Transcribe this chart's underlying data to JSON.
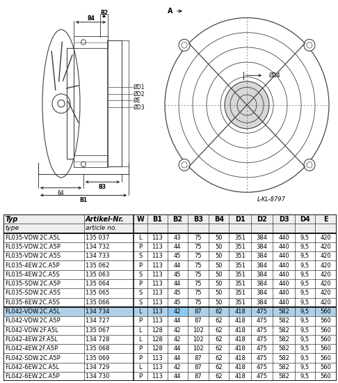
{
  "table_headers_line1": [
    "Typ",
    "Artikel-Nr.",
    "W",
    "B1",
    "B2",
    "B3",
    "B4",
    "D1",
    "D2",
    "D3",
    "D4",
    "E"
  ],
  "table_headers_line2": [
    "type",
    "article no.",
    "",
    "",
    "",
    "",
    "",
    "",
    "",
    "",
    "",
    ""
  ],
  "rows": [
    [
      "FL035-VDW.2C.A5L",
      "135 037",
      "L",
      "113",
      "43",
      "75",
      "50",
      "351",
      "384",
      "440",
      "9,5",
      "420"
    ],
    [
      "FL035-VDW.2C.A5P",
      "134 732",
      "P",
      "113",
      "44",
      "75",
      "50",
      "351",
      "384",
      "440",
      "9,5",
      "420"
    ],
    [
      "FL035-VDW.2C.A5S",
      "134 733",
      "S",
      "113",
      "45",
      "75",
      "50",
      "351",
      "384",
      "440",
      "9,5",
      "420"
    ],
    [
      "FL035-4EW.2C.A5P",
      "135 062",
      "P",
      "113",
      "44",
      "75",
      "50",
      "351",
      "384",
      "440",
      "9,5",
      "420"
    ],
    [
      "FL035-4EW.2C.A5S",
      "135 063",
      "S",
      "113",
      "45",
      "75",
      "50",
      "351",
      "384",
      "440",
      "9,5",
      "420"
    ],
    [
      "FL035-SDW.2C.A5P",
      "135 064",
      "P",
      "113",
      "44",
      "75",
      "50",
      "351",
      "384",
      "440",
      "9,5",
      "420"
    ],
    [
      "FL035-SDW.2C.A5S",
      "135 065",
      "S",
      "113",
      "45",
      "75",
      "50",
      "351",
      "384",
      "440",
      "9,5",
      "420"
    ],
    [
      "FL035-6EW.2C.A5S",
      "135 066",
      "S",
      "113",
      "45",
      "75",
      "50",
      "351",
      "384",
      "440",
      "9,5",
      "420"
    ],
    [
      "FL042-VDW.2C.A5L",
      "134 734",
      "L",
      "113",
      "42",
      "87",
      "62",
      "418",
      "475",
      "582",
      "9,5",
      "560"
    ],
    [
      "FL042-VDW.2C.A5P",
      "134 727",
      "P",
      "113",
      "44",
      "87",
      "62",
      "418",
      "475",
      "582",
      "9,5",
      "560"
    ],
    [
      "FL042-VDW.2F.A5L",
      "135 067",
      "L",
      "128",
      "42",
      "102",
      "62",
      "418",
      "475",
      "582",
      "9,5",
      "560"
    ],
    [
      "FL042-4EW.2F.A5L",
      "134 728",
      "L",
      "128",
      "42",
      "102",
      "62",
      "418",
      "475",
      "582",
      "9,5",
      "560"
    ],
    [
      "FL042-4EW.2F.A5P",
      "135 068",
      "P",
      "128",
      "44",
      "102",
      "62",
      "418",
      "475",
      "582",
      "9,5",
      "560"
    ],
    [
      "FL042-SDW.2C.A5P",
      "135 069",
      "P",
      "113",
      "44",
      "87",
      "62",
      "418",
      "475",
      "582",
      "9,5",
      "560"
    ],
    [
      "FL042-6EW.2C.A5L",
      "134 729",
      "L",
      "113",
      "42",
      "87",
      "62",
      "418",
      "475",
      "582",
      "9,5",
      "560"
    ],
    [
      "FL042-6EW.2C.A5P",
      "134 730",
      "P",
      "113",
      "44",
      "87",
      "62",
      "418",
      "475",
      "582",
      "9,5",
      "560"
    ]
  ],
  "highlight_row": 8,
  "highlight_b2_col": 4,
  "separator_after_row": 7,
  "col_widths_ratio": [
    2.2,
    1.35,
    0.38,
    0.55,
    0.55,
    0.58,
    0.55,
    0.6,
    0.6,
    0.6,
    0.55,
    0.58
  ],
  "highlight_color": "#b0d0e8",
  "highlight_b2_color": "#90c8f0",
  "bg_color": "#ffffff",
  "table_font_size": 6.0,
  "header_font_size": 7.0,
  "ref_label": "L-KL-8797"
}
